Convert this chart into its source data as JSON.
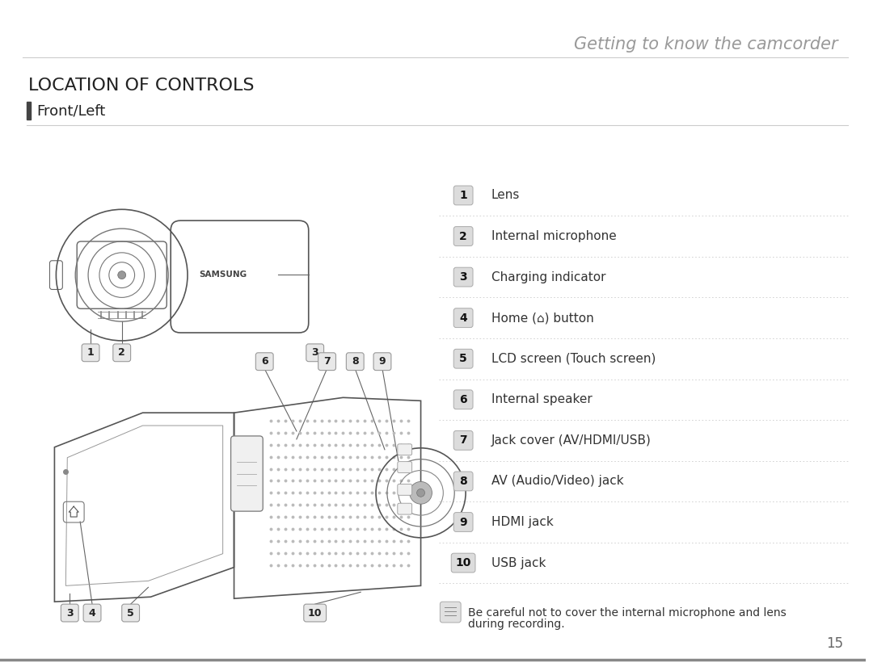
{
  "title": "Getting to know the camcorder",
  "section": "LOCATION OF CONTROLS",
  "subsection": "Front/Left",
  "items": [
    {
      "num": "1",
      "text": "Lens"
    },
    {
      "num": "2",
      "text": "Internal microphone"
    },
    {
      "num": "3",
      "text": "Charging indicator"
    },
    {
      "num": "4",
      "text": "Home (⌂) button"
    },
    {
      "num": "5",
      "text": "LCD screen (Touch screen)"
    },
    {
      "num": "6",
      "text": "Internal speaker"
    },
    {
      "num": "7",
      "text": "Jack cover (AV/HDMI/USB)"
    },
    {
      "num": "8",
      "text": "AV (Audio/Video) jack"
    },
    {
      "num": "9",
      "text": "HDMI jack"
    },
    {
      "num": "10",
      "text": "USB jack"
    }
  ],
  "note_line1": "Be careful not to cover the internal microphone and lens",
  "note_line2": "during recording.",
  "page_num": "15",
  "bg_color": "#ffffff",
  "text_color": "#333333",
  "title_color": "#999999",
  "section_color": "#222222",
  "line_color": "#aaaaaa",
  "num_box_color": "#cccccc",
  "divider_color": "#cccccc",
  "accent_color": "#555555",
  "samsung_text": "SAMSUNG"
}
